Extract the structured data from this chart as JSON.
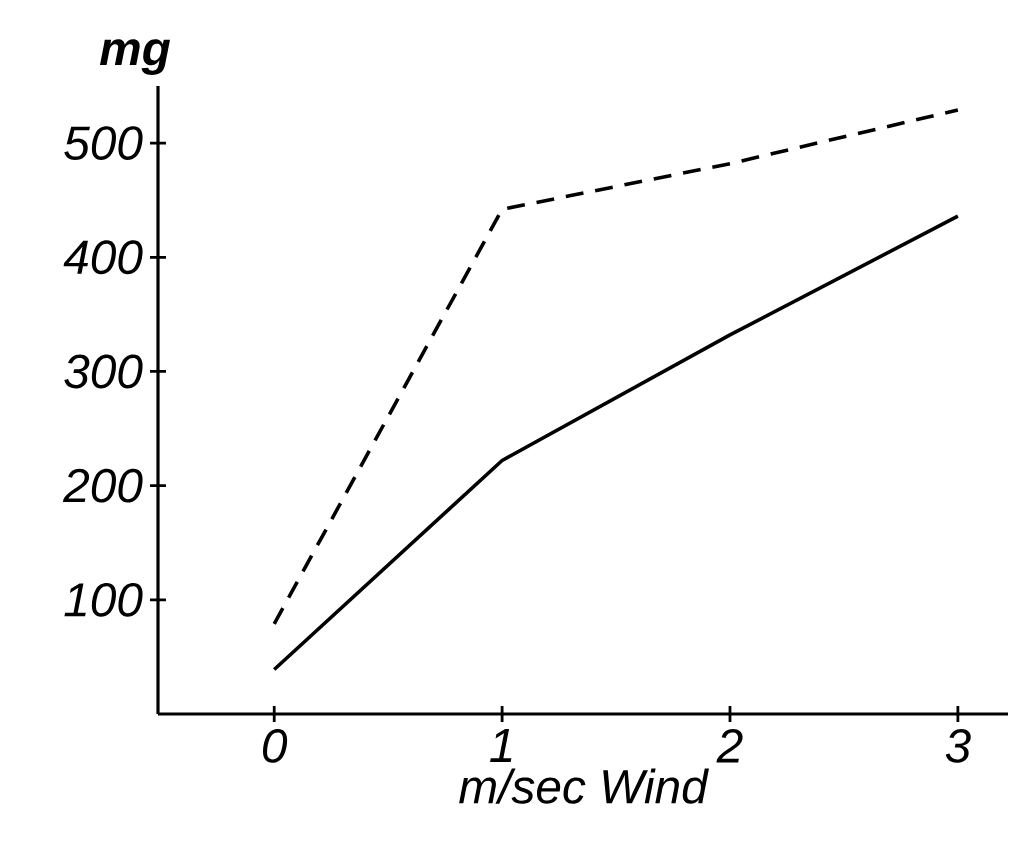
{
  "chart_data": {
    "type": "line",
    "xlabel": "m/sec Wind",
    "ylabel": "mg",
    "x": [
      0,
      1,
      2,
      3
    ],
    "series": [
      {
        "values": [
          39,
          222,
          332,
          436
        ],
        "color": "#000000",
        "line_style": "solid"
      },
      {
        "values": [
          79,
          442,
          482,
          529
        ],
        "color": "#000000",
        "line_style": "dashed"
      }
    ],
    "xlim": [
      -0.51,
      3.22
    ],
    "ylim": [
      0,
      550
    ],
    "xticks": [
      0,
      1,
      2,
      3
    ],
    "yticks": [
      100,
      200,
      300,
      400,
      500
    ],
    "grid": false,
    "marker": "none"
  }
}
